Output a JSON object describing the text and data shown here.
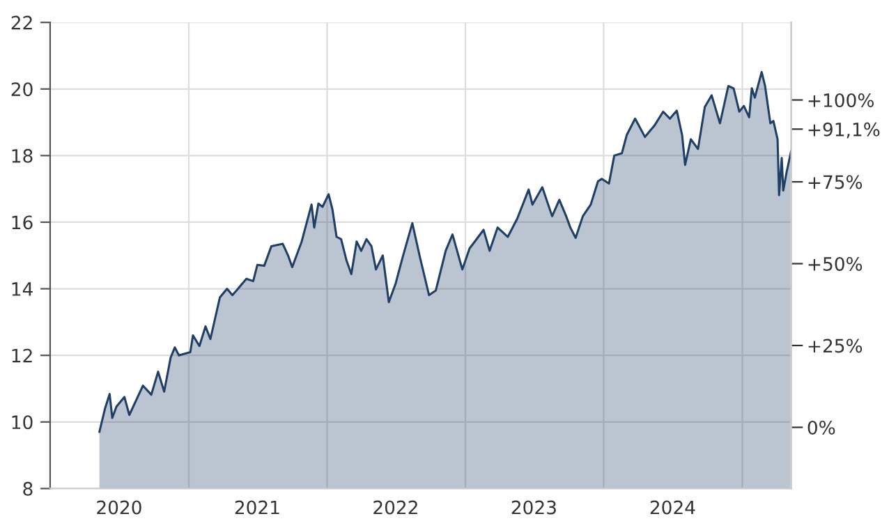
{
  "chart_data": {
    "type": "area",
    "x": [
      "2020-05-10",
      "2020-05-25",
      "2020-06-06",
      "2020-06-13",
      "2020-06-24",
      "2020-07-15",
      "2020-07-28",
      "2020-09-02",
      "2020-09-24",
      "2020-10-12",
      "2020-10-28",
      "2020-11-14",
      "2020-11-25",
      "2020-12-06",
      "2021-01-05",
      "2021-01-12",
      "2021-01-29",
      "2021-02-14",
      "2021-02-27",
      "2021-03-24",
      "2021-04-12",
      "2021-04-26",
      "2021-05-07",
      "2021-06-02",
      "2021-06-20",
      "2021-07-01",
      "2021-07-19",
      "2021-08-07",
      "2021-09-06",
      "2021-09-20",
      "2021-10-01",
      "2021-10-26",
      "2021-11-21",
      "2021-11-28",
      "2021-12-09",
      "2021-12-20",
      "2022-01-05",
      "2022-01-15",
      "2022-01-26",
      "2022-02-07",
      "2022-02-21",
      "2022-03-06",
      "2022-03-20",
      "2022-04-01",
      "2022-04-15",
      "2022-04-28",
      "2022-05-10",
      "2022-05-28",
      "2022-06-13",
      "2022-07-01",
      "2022-07-19",
      "2022-08-14",
      "2022-09-02",
      "2022-09-27",
      "2022-10-15",
      "2022-11-10",
      "2022-11-28",
      "2022-12-24",
      "2023-01-12",
      "2023-02-18",
      "2023-03-06",
      "2023-03-27",
      "2023-04-23",
      "2023-05-18",
      "2023-06-17",
      "2023-06-27",
      "2023-07-23",
      "2023-08-18",
      "2023-09-06",
      "2023-09-24",
      "2023-10-05",
      "2023-10-19",
      "2023-11-07",
      "2023-11-28",
      "2023-12-17",
      "2023-12-27",
      "2024-01-15",
      "2024-01-29",
      "2024-02-18",
      "2024-03-02",
      "2024-03-24",
      "2024-04-19",
      "2024-05-14",
      "2024-06-06",
      "2024-06-24",
      "2024-07-12",
      "2024-07-26",
      "2024-08-03",
      "2024-08-18",
      "2024-09-06",
      "2024-09-24",
      "2024-10-12",
      "2024-11-03",
      "2024-11-25",
      "2024-12-09",
      "2024-12-24",
      "2025-01-05",
      "2025-01-19",
      "2025-01-26",
      "2025-02-03",
      "2025-02-21",
      "2025-03-02",
      "2025-03-16",
      "2025-03-24",
      "2025-04-04",
      "2025-04-08",
      "2025-04-15",
      "2025-04-19",
      "2025-04-28",
      "2025-05-10"
    ],
    "series": [
      {
        "color": "#1f3f66",
        "values": [
          9.7,
          10.41,
          10.84,
          10.12,
          10.46,
          10.75,
          10.21,
          11.09,
          10.82,
          11.51,
          10.91,
          11.93,
          12.24,
          12.0,
          12.1,
          12.6,
          12.28,
          12.87,
          12.49,
          13.74,
          14.0,
          13.81,
          13.95,
          14.3,
          14.23,
          14.72,
          14.69,
          15.28,
          15.35,
          15.0,
          14.65,
          15.42,
          16.53,
          15.84,
          16.56,
          16.46,
          16.84,
          16.39,
          15.56,
          15.49,
          14.86,
          14.44,
          15.42,
          15.14,
          15.49,
          15.28,
          14.58,
          15.0,
          13.6,
          14.16,
          14.93,
          15.97,
          15.0,
          13.81,
          13.95,
          15.14,
          15.63,
          14.58,
          15.21,
          15.77,
          15.14,
          15.84,
          15.56,
          16.11,
          16.98,
          16.53,
          17.05,
          16.18,
          16.67,
          16.18,
          15.84,
          15.53,
          16.18,
          16.53,
          17.23,
          17.3,
          17.16,
          18.0,
          18.07,
          18.62,
          19.11,
          18.56,
          18.9,
          19.32,
          19.11,
          19.35,
          18.62,
          17.72,
          18.49,
          18.2,
          19.46,
          19.81,
          18.97,
          20.09,
          20.02,
          19.32,
          19.49,
          19.15,
          20.02,
          19.74,
          20.51,
          20.09,
          18.97,
          19.04,
          18.49,
          16.81,
          17.93,
          16.95,
          17.51,
          18.14
        ]
      }
    ],
    "xlim": [
      "2020-01-01",
      "2025-05-10"
    ],
    "xticks": [
      {
        "value": "2020-07-01",
        "label": "2020"
      },
      {
        "value": "2021-01-01",
        "label": null
      },
      {
        "value": "2021-07-01",
        "label": "2021"
      },
      {
        "value": "2022-01-01",
        "label": null
      },
      {
        "value": "2022-07-01",
        "label": "2022"
      },
      {
        "value": "2023-01-01",
        "label": null
      },
      {
        "value": "2023-07-01",
        "label": "2023"
      },
      {
        "value": "2024-01-01",
        "label": null
      },
      {
        "value": "2024-07-01",
        "label": "2024"
      },
      {
        "value": "2025-01-01",
        "label": null
      }
    ],
    "ylim": [
      8,
      22
    ],
    "yticks": [
      8,
      10,
      12,
      14,
      16,
      18,
      20,
      22
    ],
    "y2lim": [
      -18.7,
      123.7
    ],
    "y2ticks": [
      {
        "value": 0,
        "label": "0%"
      },
      {
        "value": 25,
        "label": "+25%"
      },
      {
        "value": 50,
        "label": "+50%"
      },
      {
        "value": 75,
        "label": "+75%"
      },
      {
        "value": 91.1,
        "label": "+91,1%"
      },
      {
        "value": 100,
        "label": "+100%"
      }
    ],
    "grid": true
  }
}
